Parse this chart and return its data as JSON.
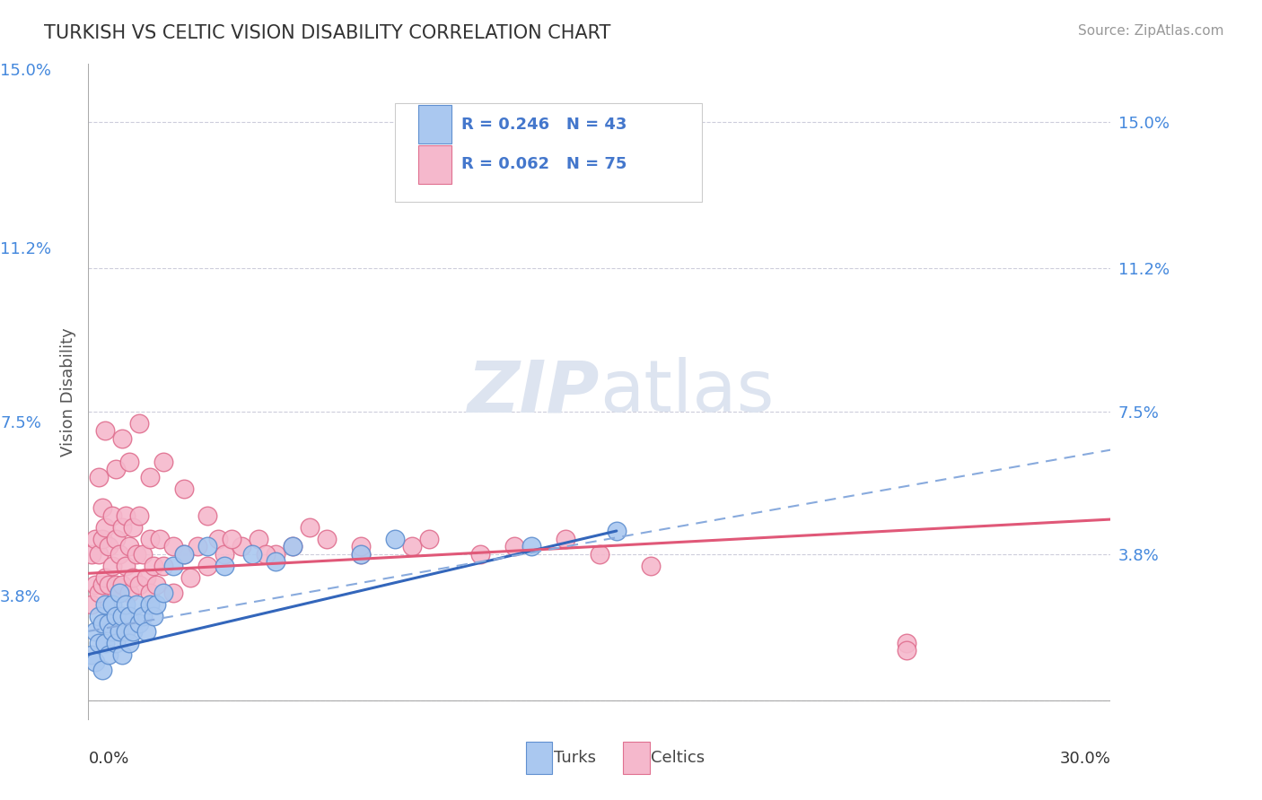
{
  "title": "TURKISH VS CELTIC VISION DISABILITY CORRELATION CHART",
  "source": "Source: ZipAtlas.com",
  "ylabel": "Vision Disability",
  "xlabel": "",
  "xlim": [
    0.0,
    0.3
  ],
  "ylim": [
    -0.005,
    0.165
  ],
  "yticks": [
    0.0,
    0.038,
    0.075,
    0.112,
    0.15
  ],
  "ytick_labels": [
    "",
    "3.8%",
    "7.5%",
    "11.2%",
    "15.0%"
  ],
  "xtick_labels": [
    "0.0%",
    "30.0%"
  ],
  "background_color": "#ffffff",
  "grid_color": "#c8c8d8",
  "turks_fill_color": "#aac8f0",
  "turks_edge_color": "#6090d0",
  "celtics_fill_color": "#f5b8cc",
  "celtics_edge_color": "#e07090",
  "turks_line_color": "#3366bb",
  "celtics_line_color": "#e05878",
  "turks_dashed_color": "#88aadd",
  "legend_text_blue": "#4477cc",
  "legend_text_pink": "#e05878",
  "legend_text_black": "#333333",
  "watermark_color": "#dde4f0",
  "ytick_color": "#4488dd",
  "xtick_color": "#333333",
  "turks_scatter_x": [
    0.001,
    0.002,
    0.002,
    0.003,
    0.003,
    0.004,
    0.004,
    0.005,
    0.005,
    0.006,
    0.006,
    0.007,
    0.007,
    0.008,
    0.008,
    0.009,
    0.009,
    0.01,
    0.01,
    0.011,
    0.011,
    0.012,
    0.012,
    0.013,
    0.014,
    0.015,
    0.016,
    0.017,
    0.018,
    0.019,
    0.02,
    0.022,
    0.025,
    0.028,
    0.035,
    0.04,
    0.048,
    0.055,
    0.06,
    0.08,
    0.09,
    0.13,
    0.155
  ],
  "turks_scatter_y": [
    0.012,
    0.01,
    0.018,
    0.015,
    0.022,
    0.008,
    0.02,
    0.015,
    0.025,
    0.012,
    0.02,
    0.018,
    0.025,
    0.015,
    0.022,
    0.018,
    0.028,
    0.012,
    0.022,
    0.018,
    0.025,
    0.015,
    0.022,
    0.018,
    0.025,
    0.02,
    0.022,
    0.018,
    0.025,
    0.022,
    0.025,
    0.028,
    0.035,
    0.038,
    0.04,
    0.035,
    0.038,
    0.036,
    0.04,
    0.038,
    0.042,
    0.04,
    0.044
  ],
  "celtics_scatter_x": [
    0.001,
    0.001,
    0.002,
    0.002,
    0.003,
    0.003,
    0.004,
    0.004,
    0.004,
    0.005,
    0.005,
    0.006,
    0.006,
    0.007,
    0.007,
    0.008,
    0.008,
    0.009,
    0.009,
    0.01,
    0.01,
    0.011,
    0.011,
    0.012,
    0.012,
    0.013,
    0.013,
    0.014,
    0.015,
    0.015,
    0.016,
    0.017,
    0.018,
    0.018,
    0.019,
    0.02,
    0.021,
    0.022,
    0.025,
    0.025,
    0.028,
    0.03,
    0.032,
    0.035,
    0.038,
    0.04,
    0.045,
    0.05,
    0.055,
    0.06,
    0.07,
    0.08,
    0.095,
    0.1,
    0.115,
    0.125,
    0.14,
    0.15,
    0.165,
    0.24,
    0.003,
    0.005,
    0.008,
    0.01,
    0.012,
    0.015,
    0.018,
    0.022,
    0.028,
    0.035,
    0.042,
    0.052,
    0.065,
    0.08,
    0.24
  ],
  "celtics_scatter_y": [
    0.025,
    0.038,
    0.03,
    0.042,
    0.028,
    0.038,
    0.03,
    0.042,
    0.05,
    0.032,
    0.045,
    0.03,
    0.04,
    0.035,
    0.048,
    0.03,
    0.042,
    0.028,
    0.038,
    0.03,
    0.045,
    0.035,
    0.048,
    0.028,
    0.04,
    0.032,
    0.045,
    0.038,
    0.03,
    0.048,
    0.038,
    0.032,
    0.028,
    0.042,
    0.035,
    0.03,
    0.042,
    0.035,
    0.028,
    0.04,
    0.038,
    0.032,
    0.04,
    0.035,
    0.042,
    0.038,
    0.04,
    0.042,
    0.038,
    0.04,
    0.042,
    0.038,
    0.04,
    0.042,
    0.038,
    0.04,
    0.042,
    0.038,
    0.035,
    0.015,
    0.058,
    0.07,
    0.06,
    0.068,
    0.062,
    0.072,
    0.058,
    0.062,
    0.055,
    0.048,
    0.042,
    0.038,
    0.045,
    0.04,
    0.013
  ],
  "turks_line_x": [
    0.0,
    0.155
  ],
  "turks_line_y": [
    0.012,
    0.044
  ],
  "celtics_line_x": [
    0.0,
    0.3
  ],
  "celtics_line_y": [
    0.033,
    0.047
  ],
  "dashed_line_x": [
    0.0,
    0.3
  ],
  "dashed_line_y": [
    0.018,
    0.065
  ]
}
